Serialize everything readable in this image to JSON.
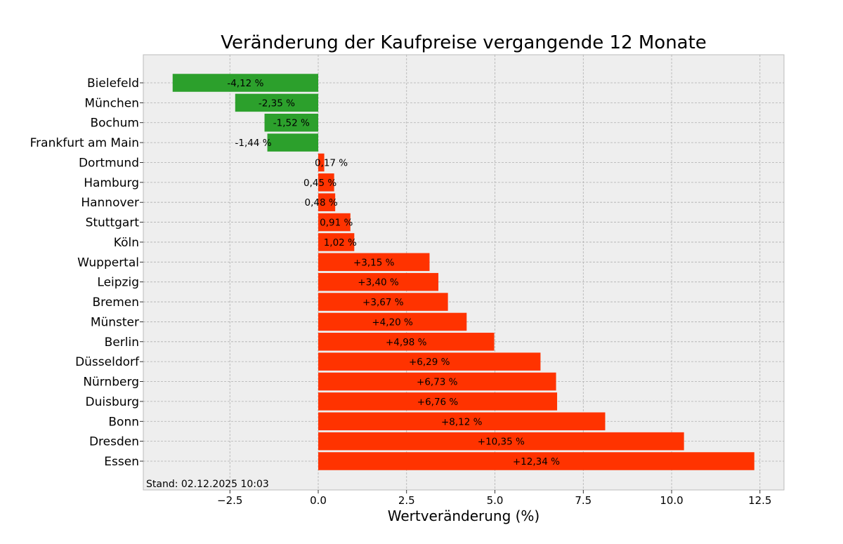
{
  "chart_data": {
    "type": "bar",
    "orientation": "horizontal",
    "title": "Veränderung der Kaufpreise vergangende 12 Monate",
    "xlabel": "Wertveränderung (%)",
    "ylabel": "",
    "xlim": [
      -4.95,
      13.18
    ],
    "xticks": [
      -2.5,
      0.0,
      2.5,
      5.0,
      7.5,
      10.0,
      12.5
    ],
    "xtick_labels": [
      "−2.5",
      "0.0",
      "2.5",
      "5.0",
      "7.5",
      "10.0",
      "12.5"
    ],
    "grid": true,
    "annotation": "Stand: 02.12.2025 10:03",
    "categories": [
      "Bielefeld",
      "München",
      "Bochum",
      "Frankfurt am Main",
      "Dortmund",
      "Hamburg",
      "Hannover",
      "Stuttgart",
      "Köln",
      "Wuppertal",
      "Leipzig",
      "Bremen",
      "Münster",
      "Berlin",
      "Düsseldorf",
      "Nürnberg",
      "Duisburg",
      "Bonn",
      "Dresden",
      "Essen"
    ],
    "values": [
      -4.12,
      -2.35,
      -1.52,
      -1.44,
      0.17,
      0.45,
      0.48,
      0.91,
      1.02,
      3.15,
      3.4,
      3.67,
      4.2,
      4.98,
      6.29,
      6.73,
      6.76,
      8.12,
      10.35,
      12.34
    ],
    "data_labels": [
      "-4,12 %",
      "-2,35 %",
      "-1,52 %",
      "-1,44 %",
      "0,17 %",
      "0,45 %",
      "0,48 %",
      "0,91 %",
      "1,02 %",
      "+3,15 %",
      "+3,40 %",
      "+3,67 %",
      "+4,20 %",
      "+4,98 %",
      "+6,29 %",
      "+6,73 %",
      "+6,76 %",
      "+8,12 %",
      "+10,35 %",
      "+12,34 %"
    ],
    "colors": {
      "negative": "#2ca02c",
      "positive": "#ff3300",
      "background": "#eeeeee",
      "grid": "#b0b0b0"
    }
  }
}
